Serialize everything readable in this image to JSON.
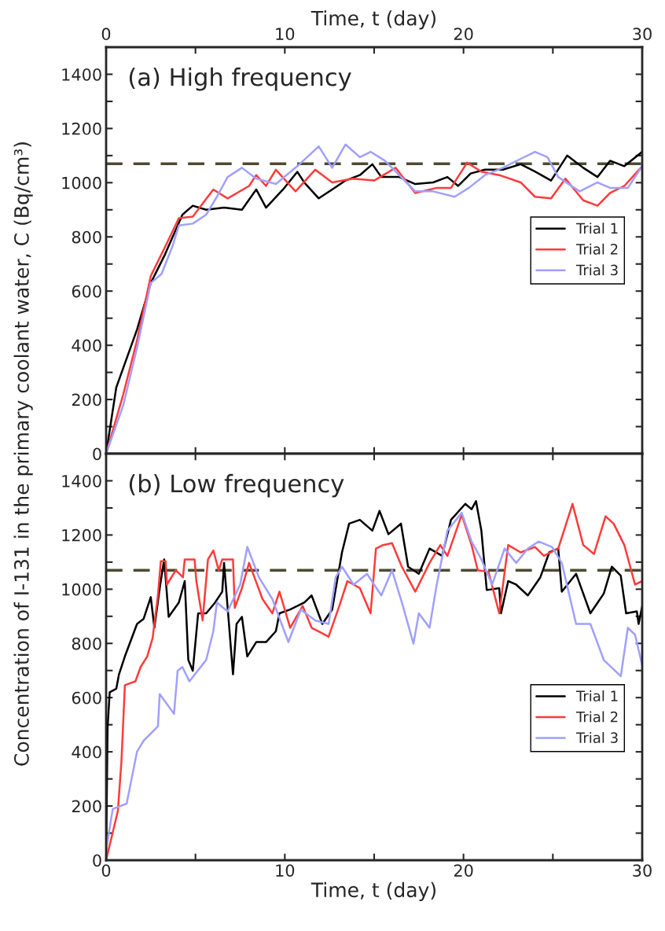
{
  "chart_data": [
    {
      "type": "line",
      "title": "(a) High frequency",
      "xlabel": "Time, t (day)",
      "ylabel": "Concentration of I-131 in the primary coolant water, C (Bq/cm³)",
      "xlim": [
        0,
        30
      ],
      "xticks": [
        0,
        {
          "value": 5,
          "label": null
        },
        10,
        {
          "value": 15,
          "label": null
        },
        20,
        {
          "value": 25,
          "label": null
        },
        30
      ],
      "ylim": [
        0,
        1500
      ],
      "yticks": [
        0,
        {
          "value": 100,
          "label": null
        },
        200,
        {
          "value": 300,
          "label": null
        },
        400,
        {
          "value": 500,
          "label": null
        },
        600,
        {
          "value": 700,
          "label": null
        },
        800,
        {
          "value": 900,
          "label": null
        },
        1000,
        {
          "value": 1100,
          "label": null
        },
        1200,
        {
          "value": 1300,
          "label": null
        },
        1400
      ],
      "legend": "center right",
      "ref_lines": [
        {
          "axis": "y",
          "value": 1070,
          "color": "#4d4a30",
          "line_style": "dashed"
        }
      ],
      "series": [
        {
          "name": "Trial 1",
          "color": "#000000",
          "x": [
            0,
            0.57,
            1.73,
            2.5,
            3.3,
            4.27,
            4.85,
            5.6,
            6.6,
            7.6,
            8.4,
            8.95,
            9.9,
            10.7,
            11.1,
            11.9,
            12.65,
            13.4,
            14.2,
            14.9,
            15.4,
            16.4,
            17.3,
            18.3,
            19.1,
            19.7,
            20.4,
            21.2,
            22.2,
            23.2,
            24,
            24.9,
            25.8,
            26.7,
            27.5,
            28.2,
            29,
            30
          ],
          "values": [
            0,
            245,
            458,
            630,
            736,
            882,
            915,
            900,
            908,
            900,
            975,
            908,
            975,
            1040,
            1000,
            942,
            975,
            1008,
            1028,
            1068,
            1021,
            1021,
            995,
            1001,
            1021,
            988,
            1034,
            1048,
            1048,
            1068,
            1041,
            1008,
            1100,
            1055,
            1021,
            1081,
            1061,
            1114
          ]
        },
        {
          "name": "Trial 2",
          "color": "#ff3b3b",
          "x": [
            0,
            0.96,
            1.73,
            2.5,
            3.3,
            4.07,
            4.85,
            6,
            6.8,
            8,
            8.4,
            8.95,
            9.5,
            10.6,
            11.7,
            12.65,
            13.8,
            15,
            16.2,
            17.3,
            18.5,
            19.3,
            20.2,
            21,
            22,
            23.2,
            24,
            24.9,
            25.7,
            26.7,
            27.5,
            28.2,
            29,
            30
          ],
          "values": [
            0,
            219,
            418,
            656,
            763,
            869,
            875,
            975,
            942,
            988,
            1028,
            988,
            1048,
            968,
            1048,
            1001,
            1015,
            1008,
            1055,
            962,
            981,
            981,
            1074,
            1041,
            1028,
            1001,
            948,
            942,
            1015,
            935,
            915,
            962,
            988,
            1061
          ]
        },
        {
          "name": "Trial 3",
          "color": "#a0a0ff",
          "x": [
            0,
            0.96,
            1.73,
            2.5,
            3.1,
            3.7,
            4.07,
            4.85,
            5.6,
            6.2,
            6.8,
            7.6,
            8.4,
            9.5,
            10.7,
            11.9,
            12.65,
            13.4,
            14.2,
            14.8,
            15.6,
            16.4,
            17.3,
            18.3,
            19.5,
            20.3,
            21.2,
            22.2,
            23.2,
            24,
            24.7,
            25.3,
            26.5,
            27.5,
            28.2,
            29.2,
            30
          ],
          "values": [
            0,
            179,
            391,
            630,
            663,
            763,
            842,
            849,
            882,
            948,
            1021,
            1055,
            1015,
            995,
            1061,
            1134,
            1055,
            1141,
            1094,
            1114,
            1081,
            1028,
            968,
            968,
            948,
            981,
            1028,
            1055,
            1088,
            1114,
            1094,
            1021,
            968,
            1001,
            981,
            981,
            1061
          ]
        }
      ]
    },
    {
      "type": "line",
      "title": "(b) Low frequency",
      "xlabel": "Time, t (day)",
      "xlim": [
        0,
        30
      ],
      "xticks": [
        0,
        {
          "value": 5,
          "label": null
        },
        10,
        {
          "value": 15,
          "label": null
        },
        20,
        {
          "value": 25,
          "label": null
        },
        30
      ],
      "ylim": [
        0,
        1500
      ],
      "yticks": [
        0,
        {
          "value": 100,
          "label": null
        },
        200,
        {
          "value": 300,
          "label": null
        },
        400,
        {
          "value": 500,
          "label": null
        },
        600,
        {
          "value": 700,
          "label": null
        },
        800,
        {
          "value": 900,
          "label": null
        },
        1000,
        {
          "value": 1100,
          "label": null
        },
        1200,
        {
          "value": 1300,
          "label": null
        },
        1400
      ],
      "legend": "lower right",
      "ref_lines": [
        {
          "axis": "y",
          "value": 1070,
          "color": "#4d4a30",
          "line_style": "dashed"
        }
      ],
      "series": [
        {
          "name": "Trial 1",
          "color": "#000000",
          "x": [
            0,
            0.08,
            0.2,
            0.57,
            0.72,
            1.05,
            1.73,
            2.1,
            2.5,
            2.7,
            3,
            3.25,
            3.5,
            4.07,
            4.4,
            4.6,
            4.85,
            5.15,
            5.6,
            6.1,
            6.5,
            6.6,
            7.1,
            7.3,
            7.6,
            7.9,
            8.4,
            8.95,
            9.5,
            9.7,
            10.3,
            11.1,
            11.5,
            12.1,
            12.65,
            13.2,
            13.6,
            14.2,
            14.9,
            15.3,
            15.8,
            16.5,
            16.9,
            17.5,
            18.1,
            18.8,
            19.3,
            20.1,
            20.45,
            20.7,
            21,
            21.3,
            22,
            22.1,
            22.5,
            22.95,
            23.6,
            24.3,
            24.8,
            25.3,
            25.5,
            26.3,
            27.1,
            27.85,
            28.3,
            28.8,
            29.1,
            29.7,
            29.8,
            30
          ],
          "values": [
            0,
            487,
            620,
            633,
            686,
            752,
            872,
            891,
            971,
            858,
            1004,
            1110,
            898,
            951,
            1030,
            739,
            699,
            911,
            911,
            951,
            991,
            1097,
            686,
            872,
            898,
            752,
            805,
            805,
            845,
            911,
            925,
            951,
            977,
            872,
            925,
            1136,
            1242,
            1256,
            1216,
            1289,
            1203,
            1242,
            1083,
            1057,
            1150,
            1123,
            1256,
            1315,
            1295,
            1325,
            1216,
            997,
            1004,
            911,
            1030,
            1017,
            977,
            1044,
            1136,
            1150,
            991,
            1057,
            911,
            984,
            1083,
            1050,
            911,
            918,
            872,
            938
          ]
        },
        {
          "name": "Trial 2",
          "color": "#ff3b3b",
          "x": [
            0,
            0.18,
            0.66,
            0.86,
            1.05,
            1.64,
            1.93,
            2.3,
            2.6,
            2.9,
            3.06,
            3.33,
            3.4,
            3.9,
            4.3,
            4.4,
            4.95,
            5.05,
            5.4,
            5.7,
            6.0,
            6.3,
            6.5,
            7.1,
            7.2,
            7.6,
            8,
            8.75,
            9.3,
            9.7,
            10.3,
            11,
            11.5,
            12.45,
            13.05,
            13.5,
            14.2,
            14.8,
            15.1,
            15.5,
            16,
            16.55,
            17.3,
            18.1,
            18.7,
            19.1,
            19.9,
            20.45,
            20.8,
            21.4,
            22,
            22.5,
            23.2,
            24,
            24.5,
            25.3,
            26.1,
            26.7,
            27.3,
            27.95,
            28.4,
            29,
            29.6,
            30
          ],
          "values": [
            0,
            50,
            183,
            368,
            646,
            660,
            713,
            752,
            819,
            977,
            1103,
            1103,
            1017,
            1070,
            1044,
            1110,
            1110,
            1030,
            885,
            1110,
            1143,
            1070,
            1110,
            1110,
            931,
            1004,
            1097,
            964,
            911,
            991,
            858,
            938,
            858,
            825,
            938,
            1030,
            1004,
            911,
            1150,
            1163,
            1170,
            1083,
            991,
            1097,
            1163,
            1123,
            1275,
            1163,
            1070,
            1064,
            911,
            1163,
            1136,
            1156,
            1123,
            1150,
            1315,
            1163,
            1130,
            1269,
            1242,
            1163,
            1017,
            1030
          ]
        },
        {
          "name": "Trial 3",
          "color": "#a0a0ff",
          "x": [
            0,
            0.37,
            1.15,
            1.73,
            2.1,
            2.9,
            3,
            3.8,
            4,
            4.27,
            4.66,
            5.6,
            6.0,
            6.2,
            6.8,
            7.5,
            7.9,
            8.55,
            9.3,
            10.2,
            10.9,
            11.7,
            12.45,
            12.85,
            13.2,
            13.85,
            14.6,
            15.4,
            16,
            16.55,
            17.2,
            17.5,
            18.1,
            18.5,
            19.1,
            19.9,
            20.45,
            21,
            21.6,
            22.3,
            22.95,
            23.6,
            24.2,
            24.95,
            25.5,
            26.3,
            27.1,
            27.85,
            28.8,
            29.2,
            29.6,
            30
          ],
          "values": [
            37,
            189,
            209,
            401,
            441,
            494,
            613,
            540,
            699,
            713,
            660,
            739,
            845,
            951,
            918,
            1017,
            1156,
            1044,
            964,
            805,
            925,
            885,
            872,
            1044,
            1083,
            1017,
            1057,
            977,
            1070,
            951,
            799,
            911,
            858,
            1017,
            1216,
            1282,
            1176,
            1110,
            1017,
            1150,
            1097,
            1150,
            1176,
            1156,
            1097,
            872,
            872,
            739,
            679,
            858,
            832,
            719
          ]
        }
      ]
    }
  ]
}
